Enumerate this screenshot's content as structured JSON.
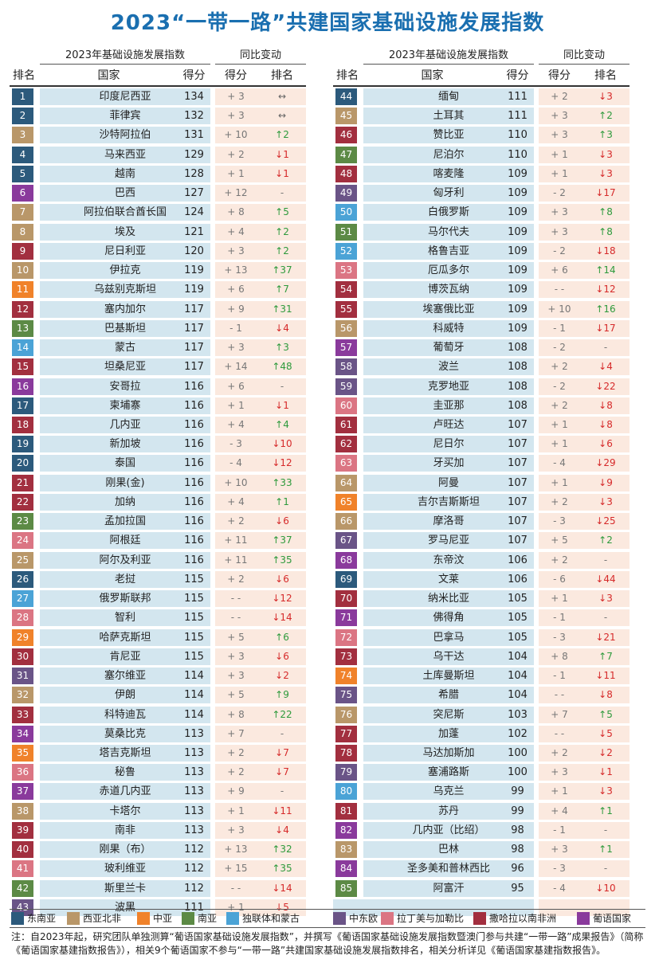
{
  "title": "2023“一带一路”共建国家基础设施发展指数",
  "headers": {
    "group_index": "2023年基础设施发展指数",
    "group_change": "同比变动",
    "rank": "排名",
    "country": "国家",
    "score": "得分",
    "score_change": "得分",
    "rank_change": "排名"
  },
  "colors": {
    "东南亚": "#2c5a7c",
    "西亚北非": "#b99769",
    "中亚": "#f0822a",
    "南亚": "#5c8a45",
    "独联体和蒙古": "#4ba3d6",
    "中东欧": "#6a5487",
    "拉丁美与加勒比": "#db7583",
    "撒哈拉以南非洲": "#a22f3f",
    "葡语国家": "#8a3a9c"
  },
  "legend": [
    {
      "key": "东南亚",
      "label": "东南亚"
    },
    {
      "key": "西亚北非",
      "label": "西亚北非"
    },
    {
      "key": "中亚",
      "label": "中亚"
    },
    {
      "key": "南亚",
      "label": "南亚"
    },
    {
      "key": "独联体和蒙古",
      "label": "独联体和蒙古"
    },
    {
      "key": "中东欧",
      "label": "中东欧"
    },
    {
      "key": "拉丁美与加勒比",
      "label": "拉丁美与加勒比"
    },
    {
      "key": "撒哈拉以南非洲",
      "label": "撒哈拉以南非洲"
    },
    {
      "key": "葡语国家",
      "label": "葡语国家"
    }
  ],
  "footnote": "注：自2023年起，研究团队单独测算“葡语国家基础设施发展指数”，并撰写《葡语国家基础设施发展指数暨澳门参与共建“一带一路”成果报告》（简称《葡语国家基建指数报告》），相关9个葡语国家不参与“一带一路”共建国家基础设施发展指数排名，相关分析详见《葡语国家基建指数报告》。",
  "chart_data": {
    "type": "table",
    "columns": [
      "排名",
      "国家",
      "得分",
      "得分变动",
      "排名变动"
    ],
    "rows": [
      {
        "rank": "1",
        "country": "印度尼西亚",
        "score": 134,
        "score_change": "+ 3",
        "rank_change": "↔",
        "dir": "same",
        "region": "东南亚"
      },
      {
        "rank": "2",
        "country": "菲律宾",
        "score": 132,
        "score_change": "+ 3",
        "rank_change": "↔",
        "dir": "same",
        "region": "东南亚"
      },
      {
        "rank": "3",
        "country": "沙特阿拉伯",
        "score": 131,
        "score_change": "+ 10",
        "rank_change": "↑2",
        "dir": "up",
        "region": "西亚北非"
      },
      {
        "rank": "4",
        "country": "马来西亚",
        "score": 129,
        "score_change": "+ 2",
        "rank_change": "↓1",
        "dir": "down",
        "region": "东南亚"
      },
      {
        "rank": "5",
        "country": "越南",
        "score": 128,
        "score_change": "+ 1",
        "rank_change": "↓1",
        "dir": "down",
        "region": "东南亚"
      },
      {
        "rank": "6",
        "country": "巴西",
        "score": 127,
        "score_change": "+ 12",
        "rank_change": "-",
        "dir": "na",
        "region": "葡语国家"
      },
      {
        "rank": "7",
        "country": "阿拉伯联合酋长国",
        "score": 124,
        "score_change": "+ 8",
        "rank_change": "↑5",
        "dir": "up",
        "region": "西亚北非"
      },
      {
        "rank": "8",
        "country": "埃及",
        "score": 121,
        "score_change": "+ 4",
        "rank_change": "↑2",
        "dir": "up",
        "region": "西亚北非"
      },
      {
        "rank": "9",
        "country": "尼日利亚",
        "score": 120,
        "score_change": "+ 3",
        "rank_change": "↑2",
        "dir": "up",
        "region": "撒哈拉以南非洲"
      },
      {
        "rank": "10",
        "country": "伊拉克",
        "score": 119,
        "score_change": "+ 13",
        "rank_change": "↑37",
        "dir": "up",
        "region": "西亚北非"
      },
      {
        "rank": "11",
        "country": "乌兹别克斯坦",
        "score": 119,
        "score_change": "+ 6",
        "rank_change": "↑7",
        "dir": "up",
        "region": "中亚"
      },
      {
        "rank": "12",
        "country": "塞内加尔",
        "score": 117,
        "score_change": "+ 9",
        "rank_change": "↑31",
        "dir": "up",
        "region": "撒哈拉以南非洲"
      },
      {
        "rank": "13",
        "country": "巴基斯坦",
        "score": 117,
        "score_change": "- 1",
        "rank_change": "↓4",
        "dir": "down",
        "region": "南亚"
      },
      {
        "rank": "14",
        "country": "蒙古",
        "score": 117,
        "score_change": "+ 3",
        "rank_change": "↑3",
        "dir": "up",
        "region": "独联体和蒙古"
      },
      {
        "rank": "15",
        "country": "坦桑尼亚",
        "score": 117,
        "score_change": "+ 14",
        "rank_change": "↑48",
        "dir": "up",
        "region": "撒哈拉以南非洲"
      },
      {
        "rank": "16",
        "country": "安哥拉",
        "score": 116,
        "score_change": "+ 6",
        "rank_change": "-",
        "dir": "na",
        "region": "葡语国家"
      },
      {
        "rank": "17",
        "country": "柬埔寨",
        "score": 116,
        "score_change": "+ 1",
        "rank_change": "↓1",
        "dir": "down",
        "region": "东南亚"
      },
      {
        "rank": "18",
        "country": "几内亚",
        "score": 116,
        "score_change": "+ 4",
        "rank_change": "↑4",
        "dir": "up",
        "region": "撒哈拉以南非洲"
      },
      {
        "rank": "19",
        "country": "新加坡",
        "score": 116,
        "score_change": "- 3",
        "rank_change": "↓10",
        "dir": "down",
        "region": "东南亚"
      },
      {
        "rank": "20",
        "country": "泰国",
        "score": 116,
        "score_change": "- 4",
        "rank_change": "↓12",
        "dir": "down",
        "region": "东南亚"
      },
      {
        "rank": "21",
        "country": "刚果(金)",
        "score": 116,
        "score_change": "+ 10",
        "rank_change": "↑33",
        "dir": "up",
        "region": "撒哈拉以南非洲"
      },
      {
        "rank": "22",
        "country": "加纳",
        "score": 116,
        "score_change": "+ 4",
        "rank_change": "↑1",
        "dir": "up",
        "region": "撒哈拉以南非洲"
      },
      {
        "rank": "23",
        "country": "孟加拉国",
        "score": 116,
        "score_change": "+ 2",
        "rank_change": "↓6",
        "dir": "down",
        "region": "南亚"
      },
      {
        "rank": "24",
        "country": "阿根廷",
        "score": 116,
        "score_change": "+ 11",
        "rank_change": "↑37",
        "dir": "up",
        "region": "拉丁美与加勒比"
      },
      {
        "rank": "25",
        "country": "阿尔及利亚",
        "score": 116,
        "score_change": "+ 11",
        "rank_change": "↑35",
        "dir": "up",
        "region": "西亚北非"
      },
      {
        "rank": "26",
        "country": "老挝",
        "score": 115,
        "score_change": "+ 2",
        "rank_change": "↓6",
        "dir": "down",
        "region": "东南亚"
      },
      {
        "rank": "27",
        "country": "俄罗斯联邦",
        "score": 115,
        "score_change": "- -",
        "rank_change": "↓12",
        "dir": "down",
        "region": "独联体和蒙古"
      },
      {
        "rank": "28",
        "country": "智利",
        "score": 115,
        "score_change": "- -",
        "rank_change": "↓14",
        "dir": "down",
        "region": "拉丁美与加勒比"
      },
      {
        "rank": "29",
        "country": "哈萨克斯坦",
        "score": 115,
        "score_change": "+ 5",
        "rank_change": "↑6",
        "dir": "up",
        "region": "中亚"
      },
      {
        "rank": "30",
        "country": "肯尼亚",
        "score": 115,
        "score_change": "+ 3",
        "rank_change": "↓6",
        "dir": "down",
        "region": "撒哈拉以南非洲"
      },
      {
        "rank": "31",
        "country": "塞尔维亚",
        "score": 114,
        "score_change": "+ 3",
        "rank_change": "↓2",
        "dir": "down",
        "region": "中东欧"
      },
      {
        "rank": "32",
        "country": "伊朗",
        "score": 114,
        "score_change": "+ 5",
        "rank_change": "↑9",
        "dir": "up",
        "region": "西亚北非"
      },
      {
        "rank": "33",
        "country": "科特迪瓦",
        "score": 114,
        "score_change": "+ 8",
        "rank_change": "↑22",
        "dir": "up",
        "region": "撒哈拉以南非洲"
      },
      {
        "rank": "34",
        "country": "莫桑比克",
        "score": 113,
        "score_change": "+ 7",
        "rank_change": "-",
        "dir": "na",
        "region": "葡语国家"
      },
      {
        "rank": "35",
        "country": "塔吉克斯坦",
        "score": 113,
        "score_change": "+ 2",
        "rank_change": "↓7",
        "dir": "down",
        "region": "中亚"
      },
      {
        "rank": "36",
        "country": "秘鲁",
        "score": 113,
        "score_change": "+ 2",
        "rank_change": "↓7",
        "dir": "down",
        "region": "拉丁美与加勒比"
      },
      {
        "rank": "37",
        "country": "赤道几内亚",
        "score": 113,
        "score_change": "+ 9",
        "rank_change": "-",
        "dir": "na",
        "region": "葡语国家"
      },
      {
        "rank": "38",
        "country": "卡塔尔",
        "score": 113,
        "score_change": "+ 1",
        "rank_change": "↓11",
        "dir": "down",
        "region": "西亚北非"
      },
      {
        "rank": "39",
        "country": "南非",
        "score": 113,
        "score_change": "+ 3",
        "rank_change": "↓4",
        "dir": "down",
        "region": "撒哈拉以南非洲"
      },
      {
        "rank": "40",
        "country": "刚果（布）",
        "score": 112,
        "score_change": "+ 13",
        "rank_change": "↑32",
        "dir": "up",
        "region": "撒哈拉以南非洲"
      },
      {
        "rank": "41",
        "country": "玻利维亚",
        "score": 112,
        "score_change": "+ 15",
        "rank_change": "↑35",
        "dir": "up",
        "region": "拉丁美与加勒比"
      },
      {
        "rank": "42",
        "country": "斯里兰卡",
        "score": 112,
        "score_change": "- -",
        "rank_change": "↓14",
        "dir": "down",
        "region": "南亚"
      },
      {
        "rank": "43",
        "country": "波黑",
        "score": 111,
        "score_change": "+ 1",
        "rank_change": "↓5",
        "dir": "down",
        "region": "中东欧"
      },
      {
        "rank": "44",
        "country": "缅甸",
        "score": 111,
        "score_change": "+ 2",
        "rank_change": "↓3",
        "dir": "down",
        "region": "东南亚"
      },
      {
        "rank": "45",
        "country": "土耳其",
        "score": 111,
        "score_change": "+ 3",
        "rank_change": "↑2",
        "dir": "up",
        "region": "西亚北非"
      },
      {
        "rank": "46",
        "country": "赞比亚",
        "score": 110,
        "score_change": "+ 3",
        "rank_change": "↑3",
        "dir": "up",
        "region": "撒哈拉以南非洲"
      },
      {
        "rank": "47",
        "country": "尼泊尔",
        "score": 110,
        "score_change": "+ 1",
        "rank_change": "↓3",
        "dir": "down",
        "region": "南亚"
      },
      {
        "rank": "48",
        "country": "喀麦隆",
        "score": 109,
        "score_change": "+ 1",
        "rank_change": "↓3",
        "dir": "down",
        "region": "撒哈拉以南非洲"
      },
      {
        "rank": "49",
        "country": "匈牙利",
        "score": 109,
        "score_change": "- 2",
        "rank_change": "↓17",
        "dir": "down",
        "region": "中东欧"
      },
      {
        "rank": "50",
        "country": "白俄罗斯",
        "score": 109,
        "score_change": "+ 3",
        "rank_change": "↑8",
        "dir": "up",
        "region": "独联体和蒙古"
      },
      {
        "rank": "51",
        "country": "马尔代夫",
        "score": 109,
        "score_change": "+ 3",
        "rank_change": "↑8",
        "dir": "up",
        "region": "南亚"
      },
      {
        "rank": "52",
        "country": "格鲁吉亚",
        "score": 109,
        "score_change": "- 2",
        "rank_change": "↓18",
        "dir": "down",
        "region": "独联体和蒙古"
      },
      {
        "rank": "53",
        "country": "厄瓜多尔",
        "score": 109,
        "score_change": "+ 6",
        "rank_change": "↑14",
        "dir": "up",
        "region": "拉丁美与加勒比"
      },
      {
        "rank": "54",
        "country": "博茨瓦纳",
        "score": 109,
        "score_change": "- -",
        "rank_change": "↓12",
        "dir": "down",
        "region": "撒哈拉以南非洲"
      },
      {
        "rank": "55",
        "country": "埃塞俄比亚",
        "score": 109,
        "score_change": "+ 10",
        "rank_change": "↑16",
        "dir": "up",
        "region": "撒哈拉以南非洲"
      },
      {
        "rank": "56",
        "country": "科威特",
        "score": 109,
        "score_change": "- 1",
        "rank_change": "↓17",
        "dir": "down",
        "region": "西亚北非"
      },
      {
        "rank": "57",
        "country": "葡萄牙",
        "score": 108,
        "score_change": "- 2",
        "rank_change": "-",
        "dir": "na",
        "region": "葡语国家"
      },
      {
        "rank": "58",
        "country": "波兰",
        "score": 108,
        "score_change": "+ 2",
        "rank_change": "↓4",
        "dir": "down",
        "region": "中东欧"
      },
      {
        "rank": "59",
        "country": "克罗地亚",
        "score": 108,
        "score_change": "- 2",
        "rank_change": "↓22",
        "dir": "down",
        "region": "中东欧"
      },
      {
        "rank": "60",
        "country": "圭亚那",
        "score": 108,
        "score_change": "+ 2",
        "rank_change": "↓8",
        "dir": "down",
        "region": "拉丁美与加勒比"
      },
      {
        "rank": "61",
        "country": "卢旺达",
        "score": 107,
        "score_change": "+ 1",
        "rank_change": "↓8",
        "dir": "down",
        "region": "撒哈拉以南非洲"
      },
      {
        "rank": "62",
        "country": "尼日尔",
        "score": 107,
        "score_change": "+ 1",
        "rank_change": "↓6",
        "dir": "down",
        "region": "撒哈拉以南非洲"
      },
      {
        "rank": "63",
        "country": "牙买加",
        "score": 107,
        "score_change": "- 4",
        "rank_change": "↓29",
        "dir": "down",
        "region": "拉丁美与加勒比"
      },
      {
        "rank": "64",
        "country": "阿曼",
        "score": 107,
        "score_change": "+ 1",
        "rank_change": "↓9",
        "dir": "down",
        "region": "西亚北非"
      },
      {
        "rank": "65",
        "country": "吉尔吉斯斯坦",
        "score": 107,
        "score_change": "+ 2",
        "rank_change": "↓3",
        "dir": "down",
        "region": "中亚"
      },
      {
        "rank": "66",
        "country": "摩洛哥",
        "score": 107,
        "score_change": "- 3",
        "rank_change": "↓25",
        "dir": "down",
        "region": "西亚北非"
      },
      {
        "rank": "67",
        "country": "罗马尼亚",
        "score": 107,
        "score_change": "+ 5",
        "rank_change": "↑2",
        "dir": "up",
        "region": "中东欧"
      },
      {
        "rank": "68",
        "country": "东帝汶",
        "score": 106,
        "score_change": "+ 2",
        "rank_change": "-",
        "dir": "na",
        "region": "葡语国家"
      },
      {
        "rank": "69",
        "country": "文莱",
        "score": 106,
        "score_change": "- 6",
        "rank_change": "↓44",
        "dir": "down",
        "region": "东南亚"
      },
      {
        "rank": "70",
        "country": "纳米比亚",
        "score": 105,
        "score_change": "+ 1",
        "rank_change": "↓3",
        "dir": "down",
        "region": "撒哈拉以南非洲"
      },
      {
        "rank": "71",
        "country": "佛得角",
        "score": 105,
        "score_change": "- 1",
        "rank_change": "-",
        "dir": "na",
        "region": "葡语国家"
      },
      {
        "rank": "72",
        "country": "巴拿马",
        "score": 105,
        "score_change": "- 3",
        "rank_change": "↓21",
        "dir": "down",
        "region": "拉丁美与加勒比"
      },
      {
        "rank": "73",
        "country": "乌干达",
        "score": 104,
        "score_change": "+ 8",
        "rank_change": "↑7",
        "dir": "up",
        "region": "撒哈拉以南非洲"
      },
      {
        "rank": "74",
        "country": "土库曼斯坦",
        "score": 104,
        "score_change": "- 1",
        "rank_change": "↓11",
        "dir": "down",
        "region": "中亚"
      },
      {
        "rank": "75",
        "country": "希腊",
        "score": 104,
        "score_change": "- -",
        "rank_change": "↓8",
        "dir": "down",
        "region": "中东欧"
      },
      {
        "rank": "76",
        "country": "突尼斯",
        "score": 103,
        "score_change": "+ 7",
        "rank_change": "↑5",
        "dir": "up",
        "region": "西亚北非"
      },
      {
        "rank": "77",
        "country": "加蓬",
        "score": 102,
        "score_change": "- -",
        "rank_change": "↓5",
        "dir": "down",
        "region": "撒哈拉以南非洲"
      },
      {
        "rank": "78",
        "country": "马达加斯加",
        "score": 100,
        "score_change": "+ 2",
        "rank_change": "↓2",
        "dir": "down",
        "region": "撒哈拉以南非洲"
      },
      {
        "rank": "79",
        "country": "塞浦路斯",
        "score": 100,
        "score_change": "+ 3",
        "rank_change": "↓1",
        "dir": "down",
        "region": "中东欧"
      },
      {
        "rank": "80",
        "country": "乌克兰",
        "score": 99,
        "score_change": "+ 1",
        "rank_change": "↓3",
        "dir": "down",
        "region": "独联体和蒙古"
      },
      {
        "rank": "81",
        "country": "苏丹",
        "score": 99,
        "score_change": "+ 4",
        "rank_change": "↑1",
        "dir": "up",
        "region": "撒哈拉以南非洲"
      },
      {
        "rank": "82",
        "country": "几内亚（比绍）",
        "score": 98,
        "score_change": "- 1",
        "rank_change": "-",
        "dir": "na",
        "region": "葡语国家"
      },
      {
        "rank": "83",
        "country": "巴林",
        "score": 98,
        "score_change": "+ 3",
        "rank_change": "↑1",
        "dir": "up",
        "region": "西亚北非"
      },
      {
        "rank": "84",
        "country": "圣多美和普林西比",
        "score": 96,
        "score_change": "- 3",
        "rank_change": "-",
        "dir": "na",
        "region": "葡语国家"
      },
      {
        "rank": "85",
        "country": "阿富汗",
        "score": 95,
        "score_change": "- 4",
        "rank_change": "↓10",
        "dir": "down",
        "region": "南亚"
      }
    ]
  }
}
